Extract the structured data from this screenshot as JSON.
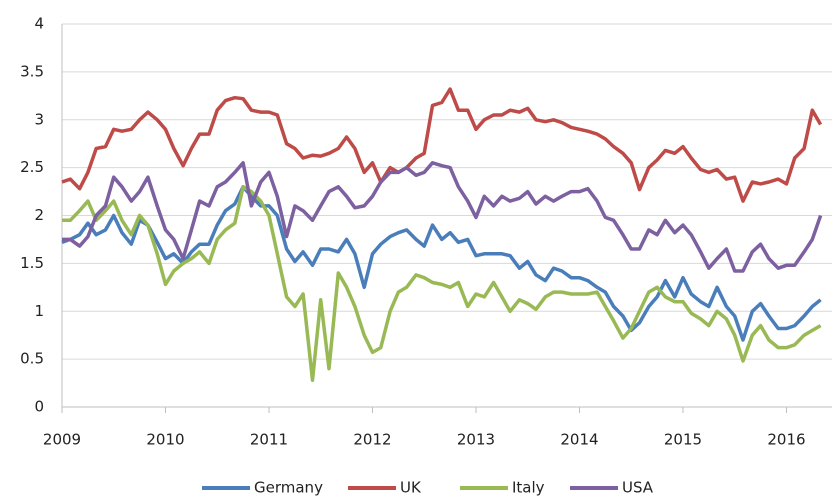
{
  "chart_data": {
    "type": "line",
    "x": [
      2009,
      2009.08,
      2009.17,
      2009.25,
      2009.33,
      2009.42,
      2009.5,
      2009.58,
      2009.67,
      2009.75,
      2009.83,
      2009.92,
      2010,
      2010.08,
      2010.17,
      2010.25,
      2010.33,
      2010.42,
      2010.5,
      2010.58,
      2010.67,
      2010.75,
      2010.83,
      2010.92,
      2011,
      2011.08,
      2011.17,
      2011.25,
      2011.33,
      2011.42,
      2011.5,
      2011.58,
      2011.67,
      2011.75,
      2011.83,
      2011.92,
      2012,
      2012.08,
      2012.17,
      2012.25,
      2012.33,
      2012.42,
      2012.5,
      2012.58,
      2012.67,
      2012.75,
      2012.83,
      2012.92,
      2013,
      2013.08,
      2013.17,
      2013.25,
      2013.33,
      2013.42,
      2013.5,
      2013.58,
      2013.67,
      2013.75,
      2013.83,
      2013.92,
      2014,
      2014.08,
      2014.17,
      2014.25,
      2014.33,
      2014.42,
      2014.5,
      2014.58,
      2014.67,
      2014.75,
      2014.83,
      2014.92,
      2015,
      2015.08,
      2015.17,
      2015.25,
      2015.33,
      2015.42,
      2015.5,
      2015.58,
      2015.67,
      2015.75,
      2015.83,
      2015.92,
      2016,
      2016.08,
      2016.17,
      2016.25,
      2016.33
    ],
    "series": [
      {
        "name": "Germany",
        "color": "#4a7ebb",
        "values": [
          1.72,
          1.75,
          1.8,
          1.92,
          1.8,
          1.85,
          2.0,
          1.82,
          1.7,
          1.95,
          1.9,
          1.72,
          1.55,
          1.6,
          1.5,
          1.62,
          1.7,
          1.7,
          1.9,
          2.05,
          2.12,
          2.3,
          2.2,
          2.1,
          2.1,
          2.0,
          1.65,
          1.52,
          1.62,
          1.48,
          1.65,
          1.65,
          1.62,
          1.75,
          1.6,
          1.25,
          1.6,
          1.7,
          1.78,
          1.82,
          1.85,
          1.75,
          1.68,
          1.9,
          1.75,
          1.82,
          1.72,
          1.75,
          1.58,
          1.6,
          1.6,
          1.6,
          1.58,
          1.45,
          1.52,
          1.38,
          1.32,
          1.45,
          1.42,
          1.35,
          1.35,
          1.32,
          1.25,
          1.2,
          1.05,
          0.95,
          0.8,
          0.88,
          1.05,
          1.15,
          1.32,
          1.15,
          1.35,
          1.18,
          1.1,
          1.05,
          1.25,
          1.05,
          0.95,
          0.7,
          1.0,
          1.08,
          0.95,
          0.82,
          0.82,
          0.85,
          0.95,
          1.05,
          1.12
        ]
      },
      {
        "name": "UK",
        "color": "#be4b48",
        "values": [
          2.35,
          2.38,
          2.28,
          2.45,
          2.7,
          2.72,
          2.9,
          2.88,
          2.9,
          3.0,
          3.08,
          3.0,
          2.9,
          2.7,
          2.52,
          2.7,
          2.85,
          2.85,
          3.1,
          3.2,
          3.23,
          3.22,
          3.1,
          3.08,
          3.08,
          3.05,
          2.75,
          2.7,
          2.6,
          2.63,
          2.62,
          2.65,
          2.7,
          2.82,
          2.7,
          2.45,
          2.55,
          2.35,
          2.5,
          2.45,
          2.5,
          2.6,
          2.65,
          3.15,
          3.18,
          3.32,
          3.1,
          3.1,
          2.9,
          3.0,
          3.05,
          3.05,
          3.1,
          3.08,
          3.12,
          3.0,
          2.98,
          3.0,
          2.97,
          2.92,
          2.9,
          2.88,
          2.85,
          2.8,
          2.72,
          2.65,
          2.55,
          2.27,
          2.5,
          2.58,
          2.68,
          2.65,
          2.72,
          2.6,
          2.48,
          2.45,
          2.48,
          2.38,
          2.4,
          2.15,
          2.35,
          2.33,
          2.35,
          2.38,
          2.33,
          2.6,
          2.7,
          3.1,
          2.95
        ]
      },
      {
        "name": "Italy",
        "color": "#98b954",
        "values": [
          1.95,
          1.95,
          2.05,
          2.15,
          1.95,
          2.05,
          2.15,
          1.95,
          1.8,
          2.0,
          1.9,
          1.6,
          1.28,
          1.42,
          1.5,
          1.55,
          1.62,
          1.5,
          1.75,
          1.85,
          1.92,
          2.3,
          2.25,
          2.15,
          2.0,
          1.6,
          1.15,
          1.05,
          1.18,
          0.28,
          1.12,
          0.4,
          1.4,
          1.25,
          1.05,
          0.75,
          0.57,
          0.62,
          1.0,
          1.2,
          1.25,
          1.38,
          1.35,
          1.3,
          1.28,
          1.25,
          1.3,
          1.05,
          1.18,
          1.15,
          1.3,
          1.15,
          1.0,
          1.12,
          1.08,
          1.02,
          1.15,
          1.2,
          1.2,
          1.18,
          1.18,
          1.18,
          1.2,
          1.05,
          0.9,
          0.72,
          0.82,
          1.0,
          1.2,
          1.25,
          1.15,
          1.1,
          1.1,
          0.98,
          0.92,
          0.85,
          1.0,
          0.92,
          0.75,
          0.48,
          0.75,
          0.85,
          0.7,
          0.62,
          0.62,
          0.65,
          0.75,
          0.8,
          0.85
        ]
      },
      {
        "name": "USA",
        "color": "#7d60a0",
        "values": [
          1.75,
          1.75,
          1.68,
          1.78,
          2.0,
          2.1,
          2.4,
          2.3,
          2.15,
          2.25,
          2.4,
          2.1,
          1.85,
          1.75,
          1.55,
          1.85,
          2.15,
          2.1,
          2.3,
          2.35,
          2.45,
          2.55,
          2.1,
          2.35,
          2.45,
          2.2,
          1.78,
          2.1,
          2.05,
          1.95,
          2.1,
          2.25,
          2.3,
          2.2,
          2.08,
          2.1,
          2.2,
          2.35,
          2.45,
          2.45,
          2.5,
          2.42,
          2.45,
          2.55,
          2.52,
          2.5,
          2.3,
          2.15,
          1.98,
          2.2,
          2.1,
          2.2,
          2.15,
          2.18,
          2.25,
          2.12,
          2.2,
          2.15,
          2.2,
          2.25,
          2.25,
          2.28,
          2.15,
          1.98,
          1.95,
          1.8,
          1.65,
          1.65,
          1.85,
          1.8,
          1.95,
          1.82,
          1.9,
          1.8,
          1.62,
          1.45,
          1.55,
          1.65,
          1.42,
          1.42,
          1.62,
          1.7,
          1.55,
          1.45,
          1.48,
          1.48,
          1.62,
          1.75,
          2.0
        ]
      }
    ],
    "xlim": [
      2009,
      2016.44
    ],
    "xticks": [
      2009,
      2010,
      2011,
      2012,
      2013,
      2014,
      2015,
      2016
    ],
    "ylim": [
      0,
      4
    ],
    "yticks": [
      0,
      0.5,
      1,
      1.5,
      2,
      2.5,
      3,
      3.5,
      4
    ],
    "grid": true,
    "legend": "bottom"
  }
}
